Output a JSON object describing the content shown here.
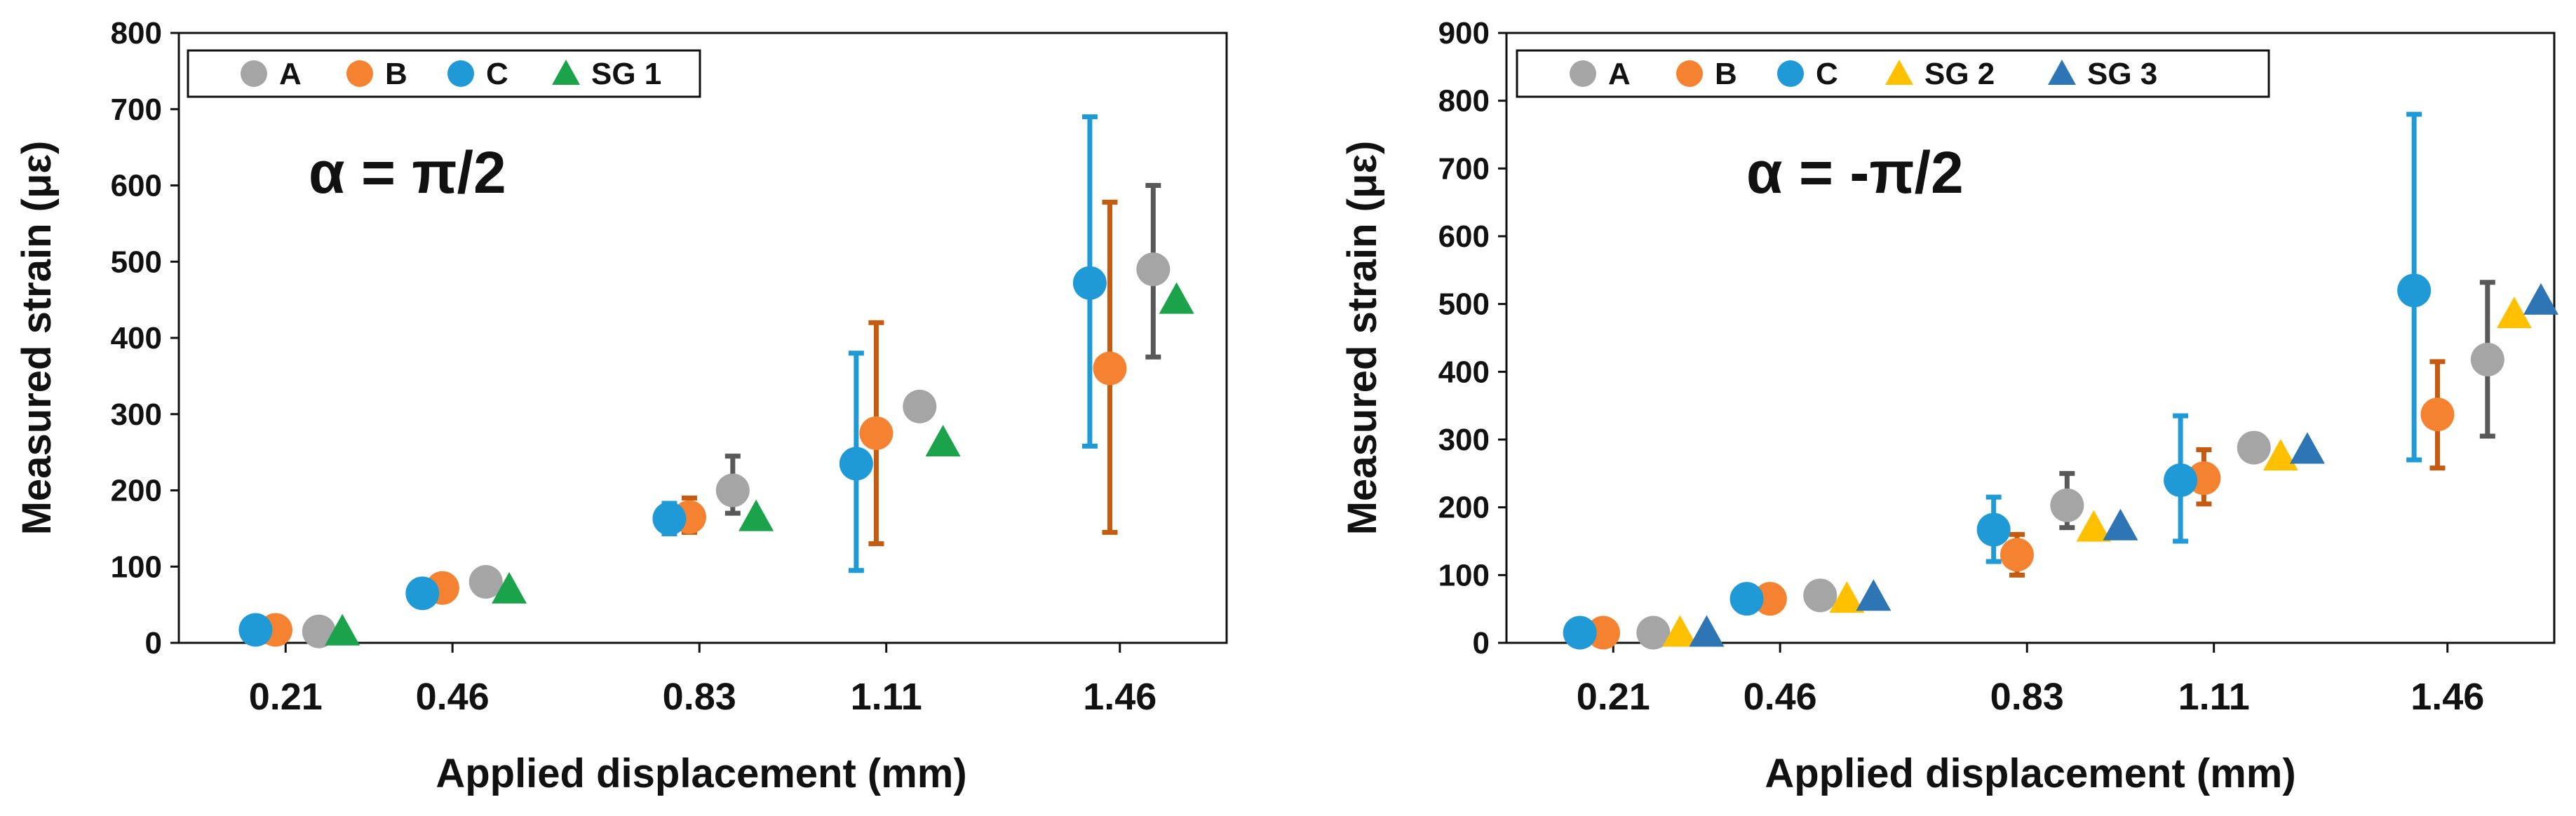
{
  "chart_data": [
    {
      "type": "scatter",
      "annotation": "α = π/2",
      "xlabel": "Applied displacement (mm)",
      "ylabel": "Measured strain (με)",
      "ylim": [
        0,
        800
      ],
      "yticks": [
        "0",
        "100",
        "200",
        "300",
        "400",
        "500",
        "600",
        "700",
        "800"
      ],
      "categories": [
        "0.21",
        "0.46",
        "0.83",
        "1.11",
        "1.46"
      ],
      "category_positions": [
        0.21,
        0.46,
        0.83,
        1.11,
        1.46
      ],
      "series": [
        {
          "name": "A",
          "marker": "circle",
          "color": "#a5a5a5",
          "err_color": "#595959",
          "values": [
            15,
            80,
            200,
            310,
            490
          ],
          "err_low": [
            10,
            70,
            170,
            295,
            375
          ],
          "err_high": [
            20,
            90,
            245,
            325,
            600
          ]
        },
        {
          "name": "B",
          "marker": "circle",
          "color": "#f58231",
          "err_color": "#c55a11",
          "values": [
            17,
            72,
            165,
            275,
            360
          ],
          "err_low": [
            12,
            62,
            145,
            130,
            145
          ],
          "err_high": [
            22,
            82,
            190,
            420,
            578
          ]
        },
        {
          "name": "C",
          "marker": "circle",
          "color": "#1f9ad6",
          "err_color": "#1f9ad6",
          "values": [
            17,
            65,
            163,
            235,
            472
          ],
          "err_low": [
            12,
            55,
            143,
            95,
            258
          ],
          "err_high": [
            22,
            75,
            183,
            380,
            690
          ]
        },
        {
          "name": "SG 1",
          "marker": "triangle",
          "color": "#1aa34a",
          "values": [
            15,
            70,
            165,
            263,
            450
          ]
        }
      ]
    },
    {
      "type": "scatter",
      "annotation": "α = -π/2",
      "xlabel": "Applied displacement (mm)",
      "ylabel": "Measured strain (με)",
      "ylim": [
        0,
        900
      ],
      "yticks": [
        "0",
        "100",
        "200",
        "300",
        "400",
        "500",
        "600",
        "700",
        "800",
        "900"
      ],
      "categories": [
        "0.21",
        "0.46",
        "0.83",
        "1.11",
        "1.46"
      ],
      "category_positions": [
        0.21,
        0.46,
        0.83,
        1.11,
        1.46
      ],
      "series": [
        {
          "name": "A",
          "marker": "circle",
          "color": "#a5a5a5",
          "err_color": "#595959",
          "values": [
            15,
            70,
            203,
            288,
            418
          ],
          "err_low": [
            10,
            62,
            170,
            275,
            305
          ],
          "err_high": [
            20,
            78,
            250,
            300,
            532
          ]
        },
        {
          "name": "B",
          "marker": "circle",
          "color": "#f58231",
          "err_color": "#c55a11",
          "values": [
            15,
            65,
            130,
            243,
            337
          ],
          "err_low": [
            10,
            57,
            100,
            205,
            258
          ],
          "err_high": [
            20,
            73,
            160,
            285,
            415
          ]
        },
        {
          "name": "C",
          "marker": "circle",
          "color": "#1f9ad6",
          "err_color": "#1f9ad6",
          "values": [
            15,
            65,
            167,
            240,
            520
          ],
          "err_low": [
            10,
            57,
            120,
            150,
            270
          ],
          "err_high": [
            20,
            73,
            215,
            335,
            780
          ]
        },
        {
          "name": "SG 2",
          "marker": "triangle",
          "color": "#ffc000",
          "values": [
            15,
            65,
            170,
            275,
            485
          ]
        },
        {
          "name": "SG 3",
          "marker": "triangle",
          "color": "#2e75b6",
          "values": [
            15,
            68,
            172,
            285,
            505
          ]
        }
      ]
    }
  ]
}
